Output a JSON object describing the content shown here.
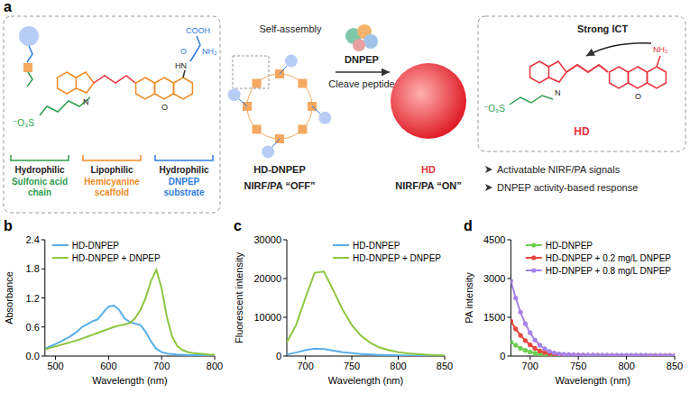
{
  "diagram": {
    "panel_label": "a",
    "probe": {
      "atoms": [
        "⁻O₃S",
        "N",
        "O",
        "HN",
        "O",
        "NH₂",
        "COOH"
      ],
      "parts": [
        {
          "role": "Hydrophilic",
          "name": "Sulfonic acid chain"
        },
        {
          "role": "Lipophilic",
          "name": "Hemicyanine scaffold"
        },
        {
          "role": "Hydrophilic",
          "name": "DNPEP substrate"
        }
      ]
    },
    "process": {
      "step1": "Self-assembly",
      "enzyme": "DNPEP",
      "step2": "Cleave peptide",
      "left_name": "HD-DNPEP",
      "right_name": "HD",
      "left_state": "NIRF/PA “OFF”",
      "right_state": "NIRF/PA “ON”"
    },
    "product": {
      "atoms": [
        "⁻O₃S",
        "N",
        "O",
        "NH₂"
      ],
      "annotation": "Strong ICT",
      "name": "HD"
    },
    "features": [
      "Activatable NIRF/PA signals",
      "DNPEP activity-based response"
    ]
  },
  "chart_data": [
    {
      "type": "line",
      "panel_label": "b",
      "xlabel": "Wavelength (nm)",
      "ylabel": "Absorbance",
      "x": [
        480,
        490,
        500,
        510,
        520,
        530,
        540,
        550,
        560,
        570,
        580,
        590,
        600,
        610,
        620,
        630,
        640,
        650,
        660,
        670,
        680,
        690,
        700,
        710,
        720,
        730,
        740,
        750,
        760,
        770,
        780,
        790,
        800
      ],
      "series": [
        {
          "name": "HD-DNPEP",
          "color": "#5aaee8",
          "values": [
            0.15,
            0.2,
            0.25,
            0.3,
            0.36,
            0.42,
            0.5,
            0.6,
            0.66,
            0.72,
            0.76,
            0.9,
            1.02,
            1.04,
            0.95,
            0.78,
            0.7,
            0.67,
            0.64,
            0.5,
            0.3,
            0.15,
            0.08,
            0.05,
            0.04,
            0.03,
            0.03,
            0.02,
            0.02,
            0.02,
            0.02,
            0.02,
            0.02
          ]
        },
        {
          "name": "HD-DNPEP + DNPEP",
          "color": "#8dc63f",
          "values": [
            0.13,
            0.17,
            0.2,
            0.23,
            0.26,
            0.29,
            0.32,
            0.36,
            0.4,
            0.44,
            0.48,
            0.52,
            0.56,
            0.6,
            0.63,
            0.65,
            0.68,
            0.78,
            0.95,
            1.2,
            1.55,
            1.78,
            1.4,
            0.8,
            0.4,
            0.2,
            0.12,
            0.08,
            0.06,
            0.05,
            0.04,
            0.03,
            0.03
          ]
        }
      ],
      "xlim": [
        480,
        800
      ],
      "ylim": [
        0,
        2.4
      ],
      "xticks": [
        500,
        600,
        700,
        800
      ],
      "yticks": [
        {
          "value": 0,
          "label": "0.0"
        },
        0.6,
        1.2,
        1.8,
        2.4
      ],
      "legend": "upper left"
    },
    {
      "type": "line",
      "panel_label": "c",
      "xlabel": "Wavelength (nm)",
      "ylabel": "Fluorescent intensity",
      "x": [
        680,
        690,
        700,
        710,
        720,
        730,
        740,
        750,
        760,
        770,
        780,
        790,
        800,
        810,
        820,
        830,
        840,
        850
      ],
      "series": [
        {
          "name": "HD-DNPEP",
          "color": "#5aaee8",
          "values": [
            400,
            900,
            1500,
            1900,
            1800,
            1400,
            1000,
            750,
            550,
            400,
            300,
            220,
            170,
            130,
            100,
            80,
            60,
            50
          ]
        },
        {
          "name": "HD-DNPEP + DNPEP",
          "color": "#8dc63f",
          "values": [
            3500,
            8000,
            15000,
            21500,
            21800,
            17000,
            12000,
            8000,
            5200,
            3400,
            2200,
            1500,
            1000,
            700,
            500,
            350,
            250,
            200
          ]
        }
      ],
      "xlim": [
        680,
        850
      ],
      "ylim": [
        0,
        30000
      ],
      "xticks": [
        700,
        750,
        800,
        850
      ],
      "yticks": [
        0,
        10000,
        20000,
        30000
      ],
      "legend": "upper right"
    },
    {
      "type": "line",
      "panel_label": "d",
      "xlabel": "Wavelength (nm)",
      "ylabel": "PA intensity",
      "x": [
        680,
        685,
        690,
        695,
        700,
        705,
        710,
        715,
        720,
        725,
        730,
        735,
        740,
        745,
        750,
        755,
        760,
        765,
        770,
        775,
        780,
        785,
        790,
        795,
        800,
        805,
        810,
        815,
        820,
        825,
        830,
        835,
        840,
        845,
        850
      ],
      "series": [
        {
          "name": "HD-DNPEP",
          "color": "#6ccf4e",
          "marker": "circle",
          "values": [
            550,
            420,
            300,
            220,
            160,
            110,
            80,
            60,
            45,
            35,
            30,
            27,
            25,
            24,
            23,
            22,
            21,
            21,
            20,
            20,
            19,
            19,
            18,
            18,
            18,
            17,
            17,
            17,
            16,
            16,
            16,
            15,
            15,
            15,
            15
          ]
        },
        {
          "name": "HD-DNPEP + 0.2 mg/L DNPEP",
          "color": "#e8453c",
          "marker": "circle",
          "values": [
            1350,
            1050,
            800,
            600,
            430,
            300,
            200,
            140,
            100,
            70,
            55,
            48,
            42,
            38,
            35,
            33,
            31,
            30,
            29,
            28,
            27,
            26,
            25,
            25,
            24,
            24,
            23,
            23,
            22,
            22,
            22,
            21,
            21,
            20,
            20
          ]
        },
        {
          "name": "HD-DNPEP + 0.8 mg/L DNPEP",
          "color": "#a582e8",
          "marker": "circle",
          "values": [
            2900,
            2250,
            1700,
            1250,
            900,
            620,
            420,
            280,
            180,
            120,
            85,
            65,
            55,
            48,
            44,
            40,
            38,
            36,
            35,
            34,
            33,
            32,
            31,
            30,
            30,
            29,
            29,
            28,
            28,
            27,
            27,
            26,
            26,
            25,
            25
          ]
        }
      ],
      "xlim": [
        680,
        850
      ],
      "ylim": [
        0,
        4500
      ],
      "xticks": [
        700,
        750,
        800,
        850
      ],
      "yticks": [
        0,
        1500,
        3000,
        4500
      ],
      "legend": "upper right"
    }
  ]
}
